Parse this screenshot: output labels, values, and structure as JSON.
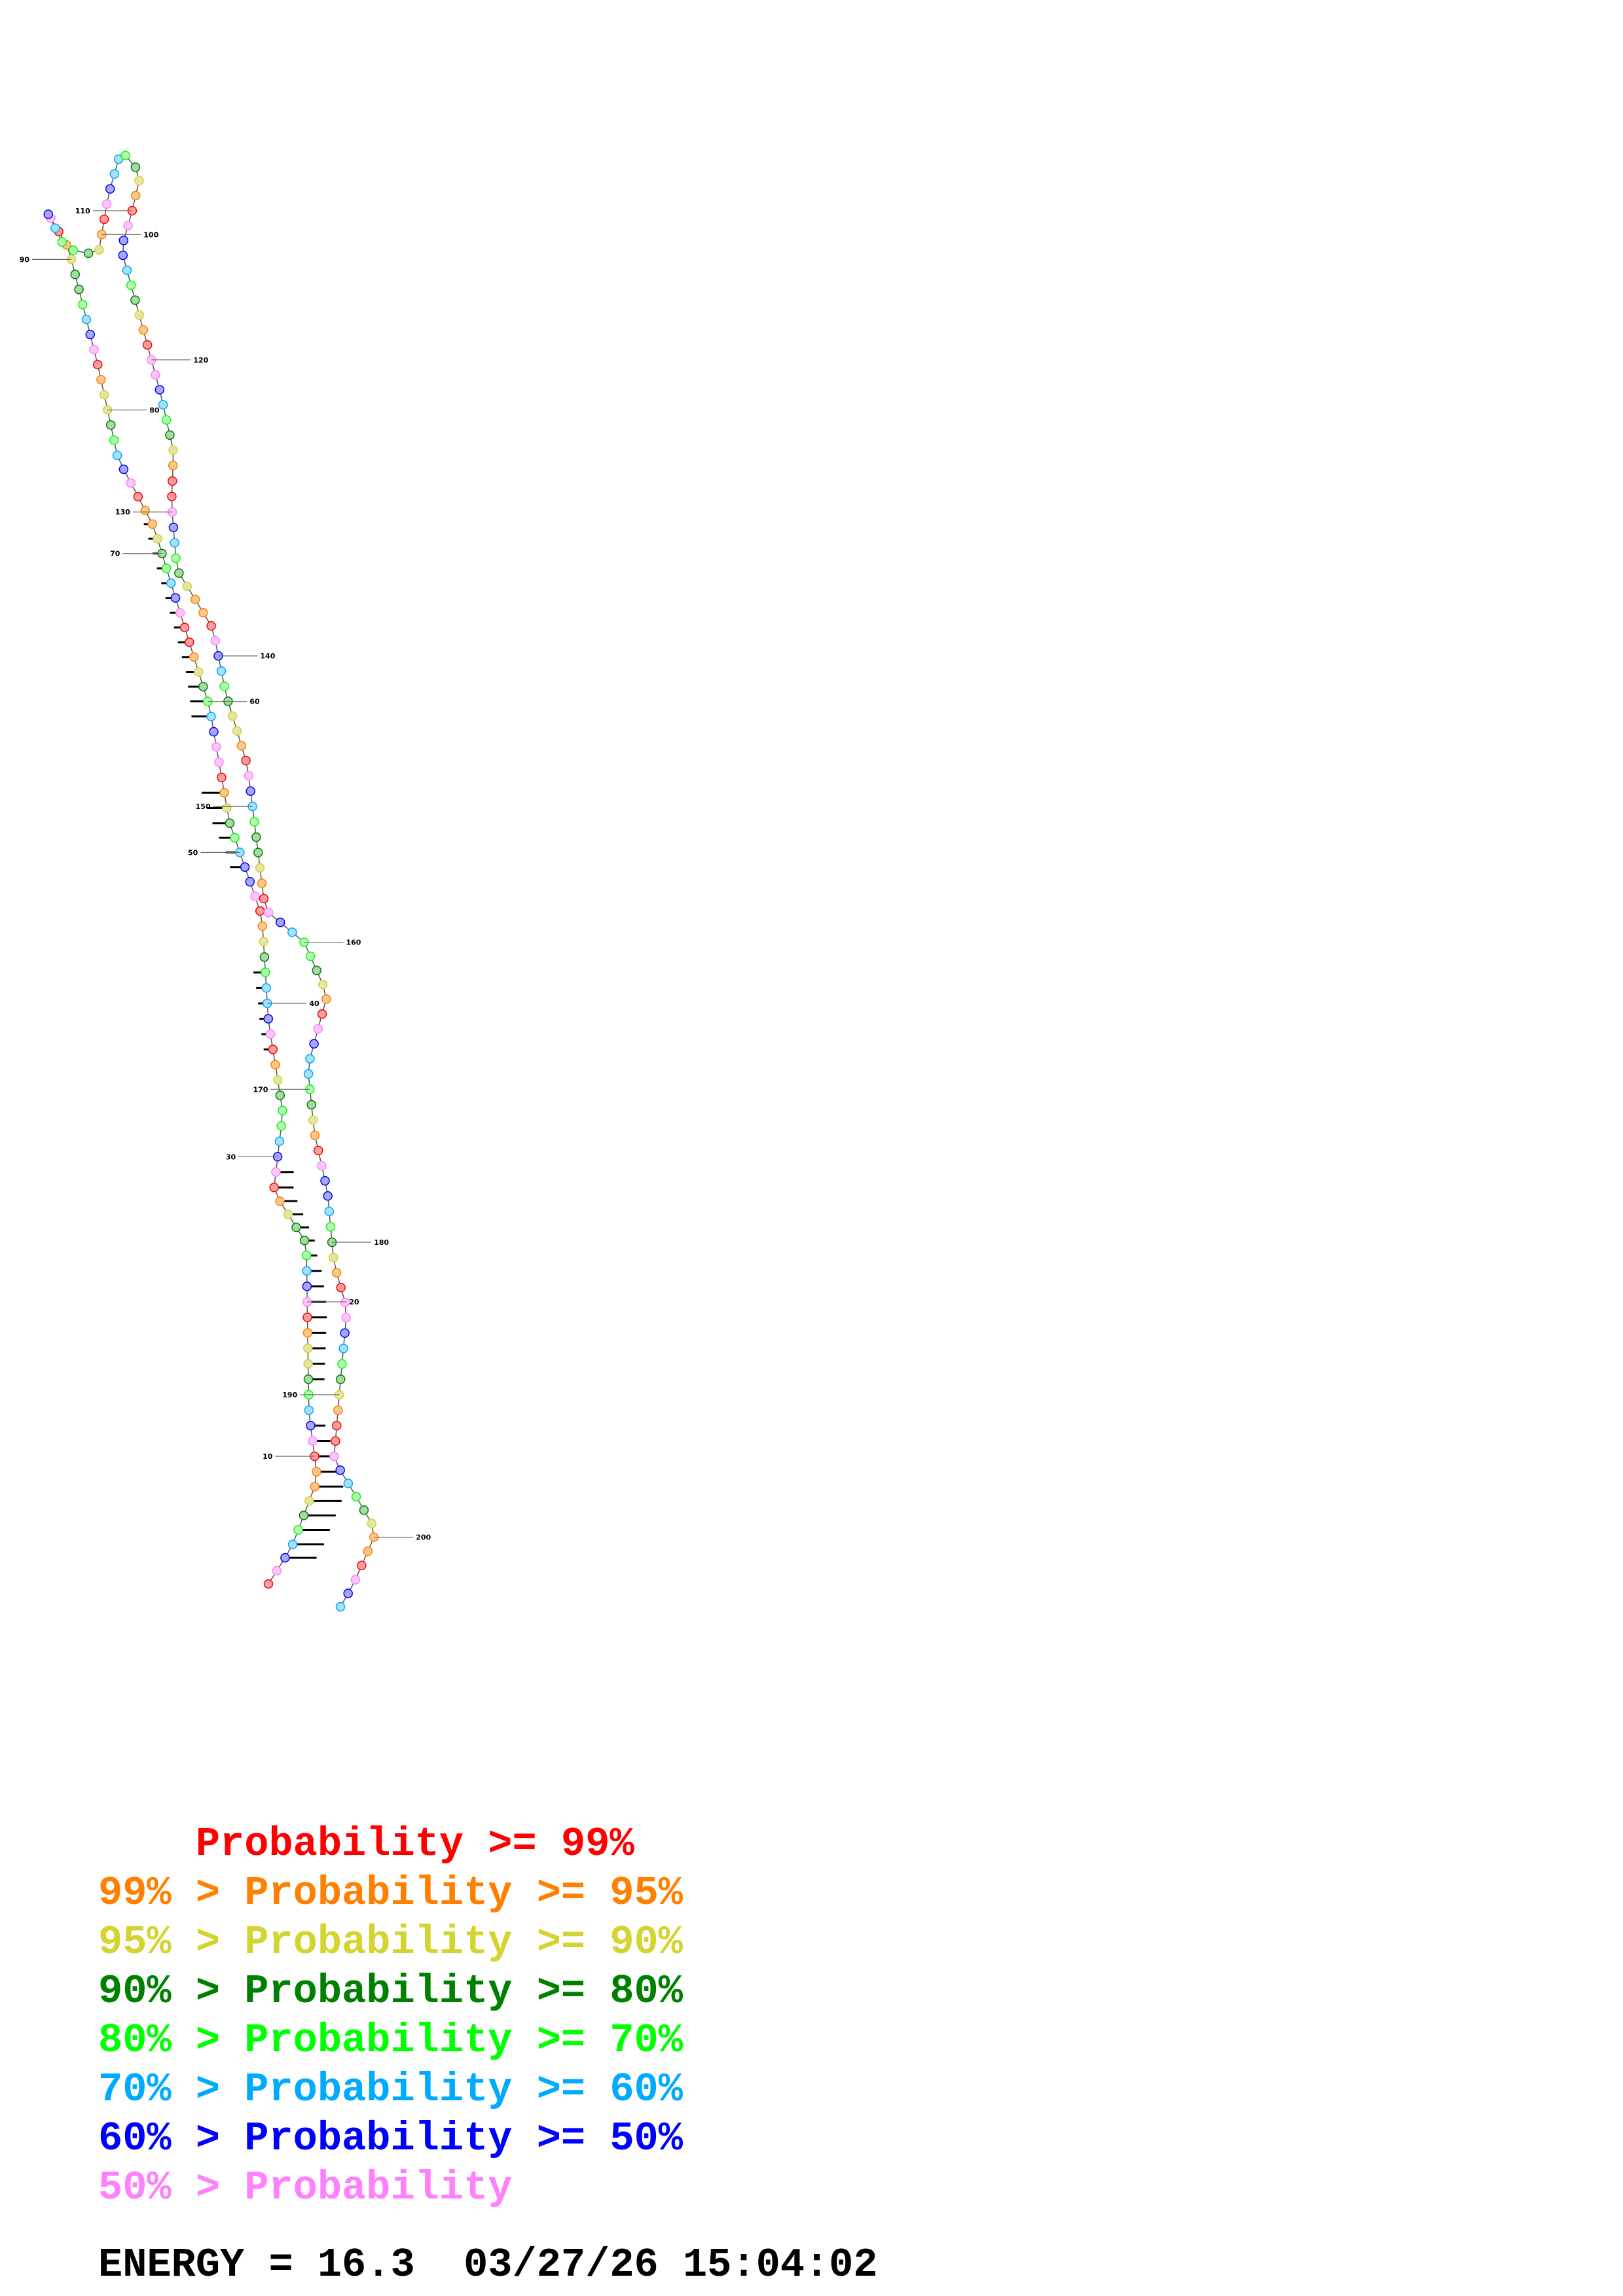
{
  "legend": {
    "rows": [
      {
        "text": "    Probability >= 99%",
        "color": "#ff0000"
      },
      {
        "text": "99% > Probability >= 95%",
        "color": "#ff8000"
      },
      {
        "text": "95% > Probability >= 90%",
        "color": "#d4d430"
      },
      {
        "text": "90% > Probability >= 80%",
        "color": "#008000"
      },
      {
        "text": "80% > Probability >= 70%",
        "color": "#00ff00"
      },
      {
        "text": "70% > Probability >= 60%",
        "color": "#00aaff"
      },
      {
        "text": "60% > Probability >= 50%",
        "color": "#0000ff"
      },
      {
        "text": "50% > Probability",
        "color": "#ff80ff"
      }
    ]
  },
  "energy_line": "ENERGY = 16.3  03/27/26 15:04:02",
  "structure": {
    "sequence_length": 205,
    "position_labels": [
      "10",
      "20",
      "30",
      "40",
      "50",
      "60",
      "70",
      "80",
      "90",
      "100",
      "110",
      "120",
      "130",
      "140",
      "150",
      "160",
      "170",
      "180",
      "190",
      "200"
    ]
  }
}
